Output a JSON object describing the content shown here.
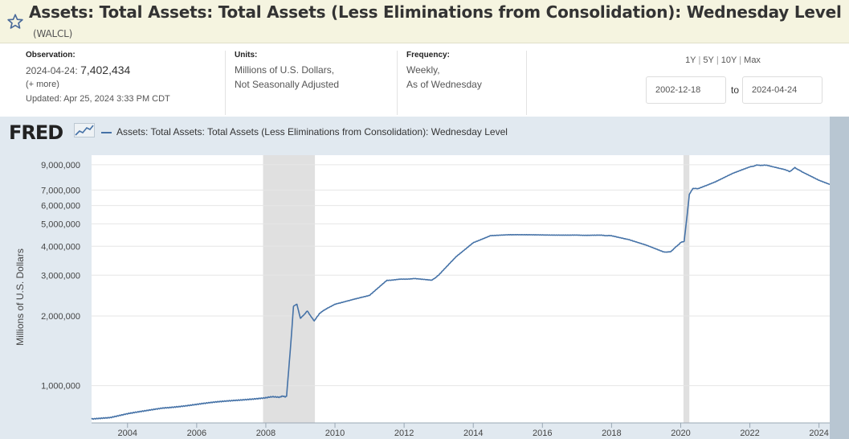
{
  "header": {
    "title": "Assets: Total Assets: Total Assets (Less Eliminations from Consolidation): Wednesday Level",
    "series_id": "(WALCL)",
    "star_icon": "star-outline-icon"
  },
  "meta": {
    "observation_label": "Observation:",
    "observation_date": "2024-04-24:",
    "observation_value": "7,402,434",
    "more": "(+ more)",
    "updated": "Updated: Apr 25, 2024 3:33 PM CDT",
    "units_label": "Units:",
    "units_line1": "Millions of U.S. Dollars,",
    "units_line2": "Not Seasonally Adjusted",
    "frequency_label": "Frequency:",
    "frequency_line1": "Weekly,",
    "frequency_line2": "As of Wednesday"
  },
  "range": {
    "links": [
      "1Y",
      "5Y",
      "10Y",
      "Max"
    ],
    "start_date": "2002-12-18",
    "to": "to",
    "end_date": "2024-04-24"
  },
  "chart": {
    "logo": "FRED",
    "legend": "Assets: Total Assets: Total Assets (Less Eliminations from Consolidation): Wednesday Level"
  },
  "chart_data": {
    "type": "line",
    "title": "",
    "xlabel": "",
    "ylabel": "Millions of U.S. Dollars",
    "y_scale": "log",
    "ylim": [
      690000,
      9900000
    ],
    "xlim": [
      2002.96,
      2024.31
    ],
    "x_ticks": [
      "2004",
      "2006",
      "2008",
      "2010",
      "2012",
      "2014",
      "2016",
      "2018",
      "2020",
      "2022",
      "2024"
    ],
    "y_ticks": [
      "1,000,000",
      "2,000,000",
      "3,000,000",
      "4,000,000",
      "5,000,000",
      "6,000,000",
      "7,000,000",
      "9,000,000"
    ],
    "y_tick_values": [
      1000000,
      2000000,
      3000000,
      4000000,
      5000000,
      6000000,
      7000000,
      9000000
    ],
    "recessions": [
      [
        2007.92,
        2009.42
      ],
      [
        2020.08,
        2020.25
      ]
    ],
    "line_color": "#4572a7",
    "recession_color": "#e0e0e0",
    "legend": "top",
    "grid": true,
    "series": [
      {
        "name": "Assets: Total Assets: Total Assets (Less Eliminations from Consolidation): Wednesday Level",
        "x": [
          2002.96,
          2003.5,
          2004.0,
          2004.5,
          2005.0,
          2005.5,
          2006.0,
          2006.5,
          2007.0,
          2007.5,
          2008.0,
          2008.4,
          2008.6,
          2008.72,
          2008.8,
          2008.9,
          2009.0,
          2009.2,
          2009.4,
          2009.55,
          2009.75,
          2010.0,
          2010.5,
          2011.0,
          2011.5,
          2011.9,
          2012.3,
          2012.8,
          2013.0,
          2013.5,
          2014.0,
          2014.5,
          2015.0,
          2016.0,
          2017.0,
          2017.7,
          2018.0,
          2018.5,
          2019.0,
          2019.5,
          2019.7,
          2019.8,
          2020.0,
          2020.1,
          2020.17,
          2020.25,
          2020.35,
          2020.5,
          2021.0,
          2021.5,
          2022.0,
          2022.2,
          2022.5,
          2023.0,
          2023.15,
          2023.3,
          2023.5,
          2024.0,
          2024.31
        ],
        "y": [
          720000,
          730000,
          755000,
          775000,
          800000,
          815000,
          830000,
          845000,
          860000,
          875000,
          888000,
          895000,
          900000,
          1500000,
          2200000,
          2250000,
          1950000,
          2100000,
          1900000,
          2050000,
          2150000,
          2250000,
          2350000,
          2450000,
          2850000,
          2880000,
          2900000,
          2850000,
          3000000,
          3600000,
          4150000,
          4450000,
          4480000,
          4480000,
          4470000,
          4460000,
          4440000,
          4280000,
          4050000,
          3780000,
          3780000,
          3900000,
          4150000,
          4200000,
          5200000,
          6700000,
          7100000,
          7100000,
          7600000,
          8250000,
          8800000,
          8960000,
          8950000,
          8600000,
          8400000,
          8750000,
          8400000,
          7700000,
          7402434
        ]
      }
    ]
  }
}
